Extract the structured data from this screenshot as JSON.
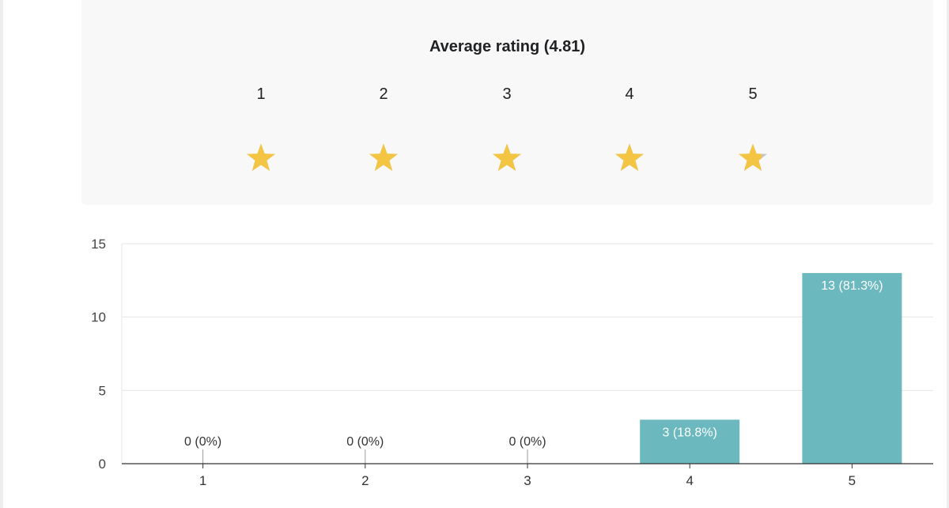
{
  "rating": {
    "title": "Average rating (4.81)",
    "scale": [
      "1",
      "2",
      "3",
      "4",
      "5"
    ],
    "average": 4.81,
    "star_color": "#f4c542",
    "star_empty_color": "#c5c5c5"
  },
  "chart_data": {
    "type": "bar",
    "categories": [
      "1",
      "2",
      "3",
      "4",
      "5"
    ],
    "values": [
      0,
      0,
      0,
      3,
      13
    ],
    "data_labels": [
      "0 (0%)",
      "0 (0%)",
      "0 (0%)",
      "3 (18.8%)",
      "13 (81.3%)"
    ],
    "y_ticks": [
      "0",
      "5",
      "10",
      "15"
    ],
    "ylim": [
      0,
      15
    ],
    "grid": true,
    "bar_color": "#6bb8bf"
  }
}
